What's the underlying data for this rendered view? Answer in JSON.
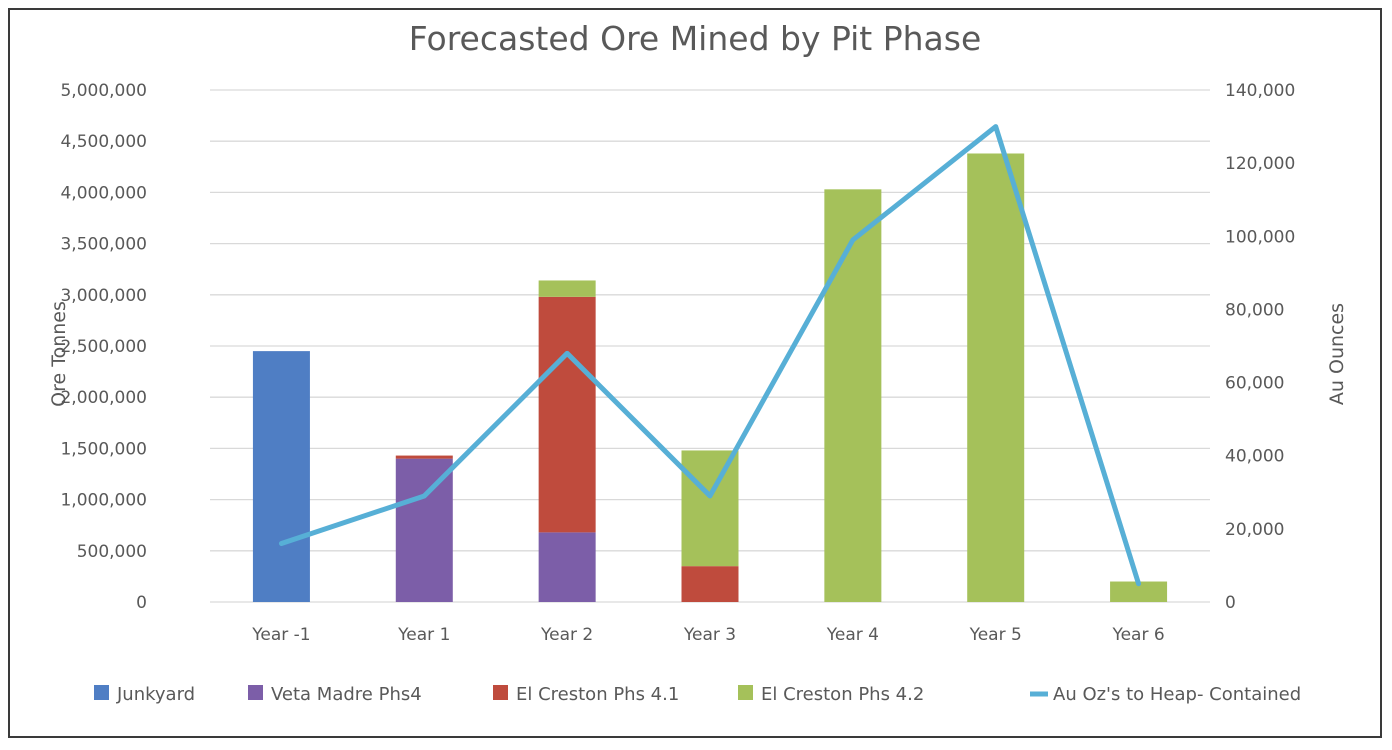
{
  "chart_data": {
    "type": "bar",
    "stacked": true,
    "title": "Forecasted Ore Mined by Pit Phase",
    "categories": [
      "Year -1",
      "Year 1",
      "Year 2",
      "Year 3",
      "Year 4",
      "Year 5",
      "Year 6"
    ],
    "ylabel": "Ore Tonnes",
    "y2label": "Au Ounces",
    "ylim": [
      0,
      5000000
    ],
    "y2lim": [
      0,
      140000
    ],
    "yticks": [
      "0",
      "500,000",
      "1,000,000",
      "1,500,000",
      "2,000,000",
      "2,500,000",
      "3,000,000",
      "3,500,000",
      "4,000,000",
      "4,500,000",
      "5,000,000"
    ],
    "y2ticks": [
      "0",
      "20,000",
      "40,000",
      "60,000",
      "80,000",
      "100,000",
      "120,000",
      "140,000"
    ],
    "grid": true,
    "legend_position": "bottom",
    "series": [
      {
        "name": "Junkyard",
        "kind": "bar",
        "color": "#4f7ec4",
        "values": [
          2450000,
          0,
          0,
          0,
          0,
          0,
          0
        ]
      },
      {
        "name": "Veta Madre Phs4",
        "kind": "bar",
        "color": "#7c5ea8",
        "values": [
          0,
          1400000,
          680000,
          0,
          0,
          0,
          0
        ]
      },
      {
        "name": "El Creston Phs 4.1",
        "kind": "bar",
        "color": "#bf4b3d",
        "values": [
          0,
          30000,
          2300000,
          350000,
          0,
          0,
          0
        ]
      },
      {
        "name": "El Creston Phs 4.2",
        "kind": "bar",
        "color": "#a5c15a",
        "values": [
          0,
          0,
          160000,
          1130000,
          4030000,
          4380000,
          200000
        ]
      },
      {
        "name": "Au Oz's to Heap- Contained",
        "kind": "line",
        "axis": "secondary",
        "color": "#57afd6",
        "values": [
          16000,
          29000,
          68000,
          29000,
          99000,
          130000,
          5000
        ]
      }
    ]
  }
}
